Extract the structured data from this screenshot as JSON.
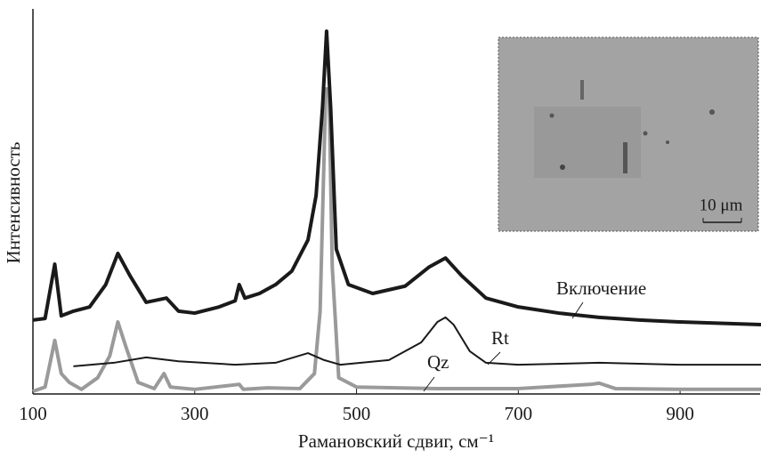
{
  "chart_data": {
    "type": "line",
    "xlabel": "Рамановский сдвиг, см⁻¹",
    "ylabel": "Интенсивность",
    "xlim": [
      100,
      1000
    ],
    "xticks": [
      100,
      300,
      500,
      700,
      900
    ],
    "ylim": [
      0,
      100
    ],
    "inset_label": "10 μm",
    "series": [
      {
        "name": "Включение",
        "color": "#1a1a1a",
        "x": [
          100,
          115,
          127,
          135,
          150,
          170,
          190,
          205,
          220,
          240,
          265,
          280,
          300,
          330,
          350,
          355,
          362,
          380,
          400,
          420,
          440,
          450,
          458,
          463,
          468,
          475,
          490,
          520,
          560,
          590,
          610,
          630,
          660,
          700,
          750,
          800,
          850,
          900,
          1000
        ],
        "values": [
          19.2,
          19.6,
          33.7,
          20.3,
          21.5,
          22.6,
          28.4,
          36.5,
          30.7,
          23.8,
          24.9,
          21.5,
          21.0,
          22.6,
          24.2,
          28.4,
          24.9,
          26.1,
          28.4,
          31.9,
          40.0,
          51.5,
          74.6,
          94.2,
          74.6,
          37.6,
          28.4,
          26.1,
          28.0,
          33.0,
          35.3,
          30.7,
          24.9,
          22.6,
          21.0,
          19.9,
          19.2,
          18.7,
          18.0
        ]
      },
      {
        "name": "Rt",
        "color": "#1a1a1a",
        "x": [
          150,
          200,
          240,
          280,
          350,
          400,
          440,
          460,
          480,
          540,
          580,
          600,
          610,
          620,
          640,
          660,
          700,
          800,
          900,
          1000
        ],
        "values": [
          7.2,
          8.1,
          9.5,
          8.5,
          7.6,
          8.1,
          10.6,
          8.8,
          7.6,
          8.8,
          13.4,
          18.7,
          19.9,
          18.0,
          11.1,
          8.1,
          7.6,
          8.1,
          7.6,
          7.6
        ]
      },
      {
        "name": "Qz",
        "color": "#9a9a9a",
        "x": [
          100,
          115,
          127,
          135,
          145,
          160,
          180,
          195,
          205,
          215,
          230,
          250,
          262,
          270,
          300,
          355,
          360,
          390,
          430,
          448,
          455,
          462,
          466,
          470,
          478,
          500,
          600,
          700,
          790,
          800,
          820,
          900,
          1000
        ],
        "values": [
          0.7,
          1.8,
          13.9,
          5.3,
          3.0,
          1.2,
          4.2,
          9.9,
          18.7,
          12.2,
          3.0,
          1.4,
          5.3,
          1.8,
          1.2,
          2.5,
          1.2,
          1.6,
          1.4,
          5.3,
          21.5,
          79.2,
          79.2,
          33.0,
          4.2,
          1.8,
          1.4,
          1.4,
          2.5,
          2.8,
          1.4,
          1.2,
          1.2
        ]
      }
    ]
  }
}
